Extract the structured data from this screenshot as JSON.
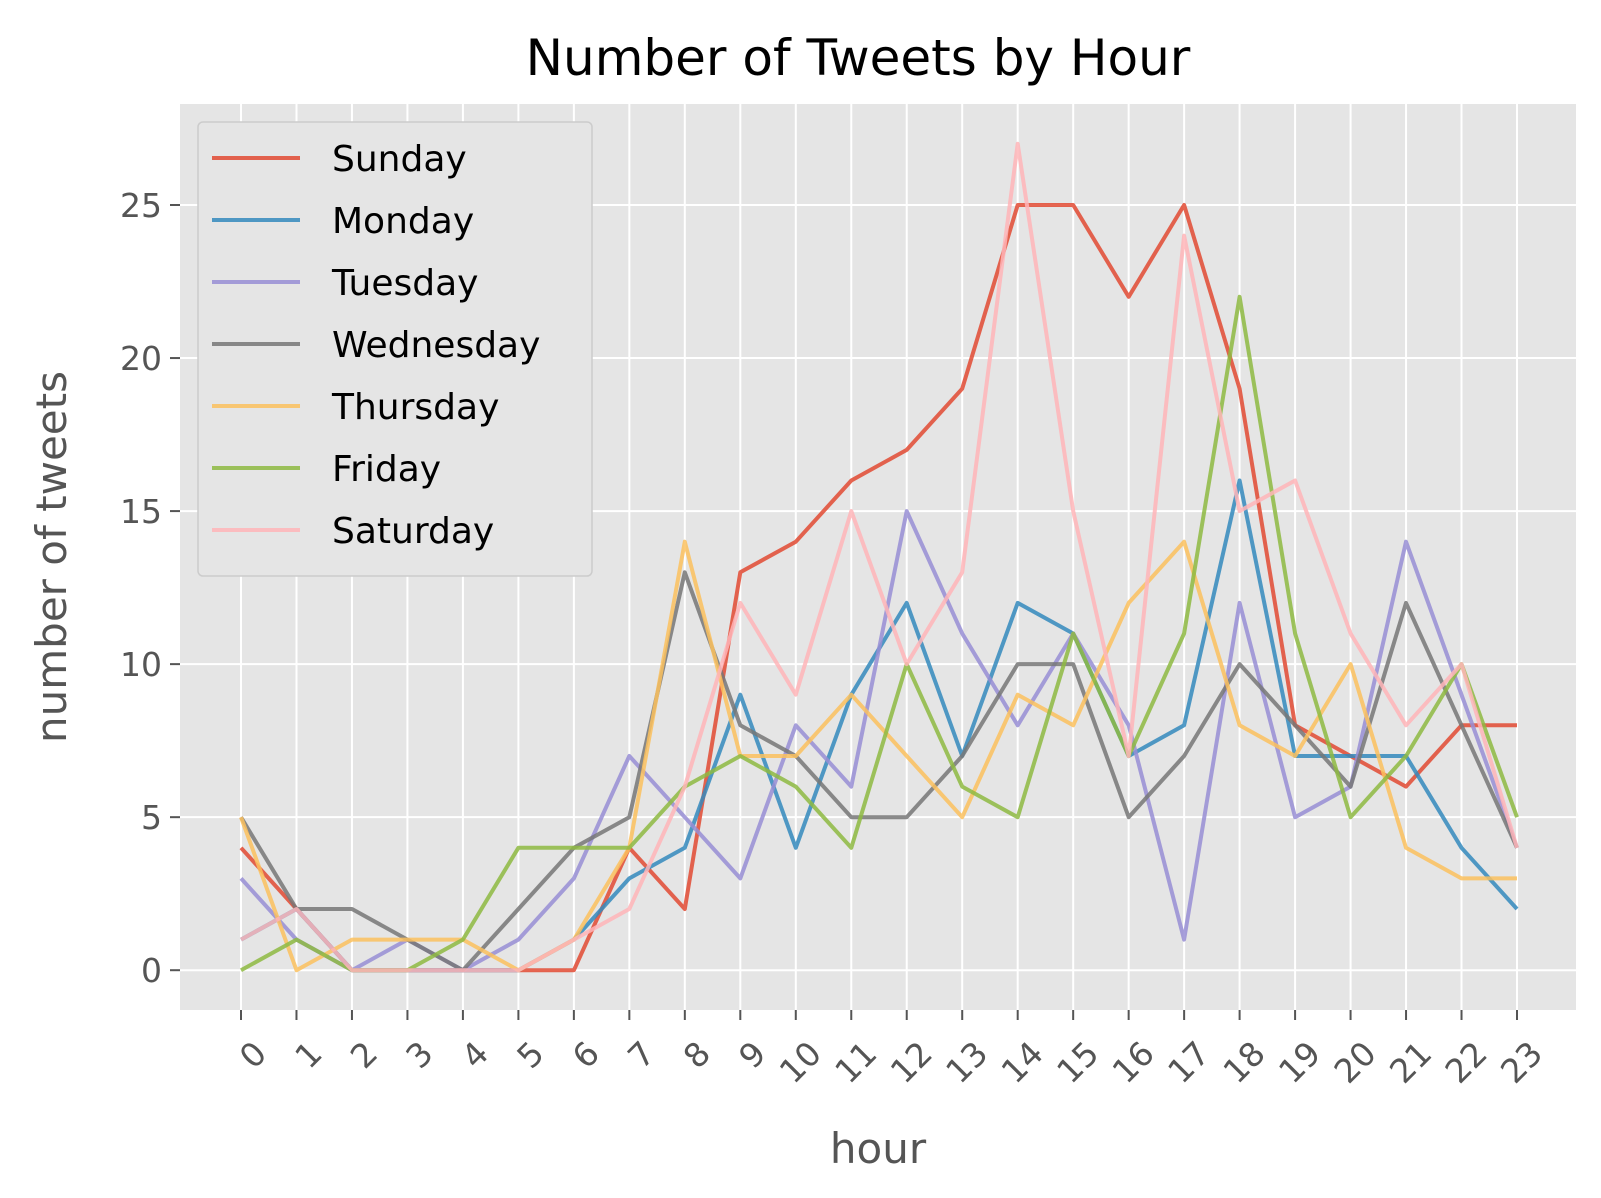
{
  "chart_data": {
    "type": "line",
    "title": "Number of Tweets by Hour",
    "xlabel": "hour",
    "ylabel": "number of tweets",
    "x": [
      "0",
      "1",
      "2",
      "3",
      "4",
      "5",
      "6",
      "7",
      "8",
      "9",
      "10",
      "11",
      "12",
      "13",
      "14",
      "15",
      "16",
      "17",
      "18",
      "19",
      "20",
      "21",
      "22",
      "23"
    ],
    "ylim": [
      -1.3,
      28.3
    ],
    "yticks": [
      "0",
      "5",
      "10",
      "15",
      "20",
      "25"
    ],
    "grid": true,
    "legend_position": "upper-left",
    "series": [
      {
        "name": "Sunday",
        "color": "#E24A33",
        "values": [
          4,
          2,
          0,
          0,
          0,
          0,
          0,
          4,
          2,
          13,
          14,
          16,
          17,
          19,
          25,
          25,
          22,
          25,
          19,
          8,
          7,
          6,
          8,
          8
        ]
      },
      {
        "name": "Monday",
        "color": "#348ABD",
        "values": [
          1,
          2,
          0,
          0,
          0,
          0,
          1,
          3,
          4,
          9,
          4,
          9,
          12,
          7,
          12,
          11,
          7,
          8,
          16,
          7,
          7,
          7,
          4,
          2
        ]
      },
      {
        "name": "Tuesday",
        "color": "#988ED5",
        "values": [
          3,
          1,
          0,
          1,
          0,
          1,
          3,
          7,
          5,
          3,
          8,
          6,
          15,
          11,
          8,
          11,
          8,
          1,
          12,
          5,
          6,
          14,
          9,
          4
        ]
      },
      {
        "name": "Wednesday",
        "color": "#777777",
        "values": [
          5,
          2,
          2,
          1,
          0,
          2,
          4,
          5,
          13,
          8,
          7,
          5,
          5,
          7,
          10,
          10,
          5,
          7,
          10,
          8,
          6,
          12,
          8,
          4
        ]
      },
      {
        "name": "Thursday",
        "color": "#FBC15E",
        "values": [
          5,
          0,
          1,
          1,
          1,
          0,
          1,
          4,
          14,
          7,
          7,
          9,
          7,
          5,
          9,
          8,
          12,
          14,
          8,
          7,
          10,
          4,
          3,
          3
        ]
      },
      {
        "name": "Friday",
        "color": "#8EBA42",
        "values": [
          0,
          1,
          0,
          0,
          1,
          4,
          4,
          4,
          6,
          7,
          6,
          4,
          10,
          6,
          5,
          11,
          7,
          11,
          22,
          11,
          5,
          7,
          10,
          5
        ]
      },
      {
        "name": "Saturday",
        "color": "#FFB5B8",
        "values": [
          1,
          2,
          0,
          0,
          0,
          0,
          1,
          2,
          6,
          12,
          9,
          15,
          10,
          13,
          27,
          15,
          7,
          24,
          15,
          16,
          11,
          8,
          10,
          4
        ]
      }
    ]
  }
}
